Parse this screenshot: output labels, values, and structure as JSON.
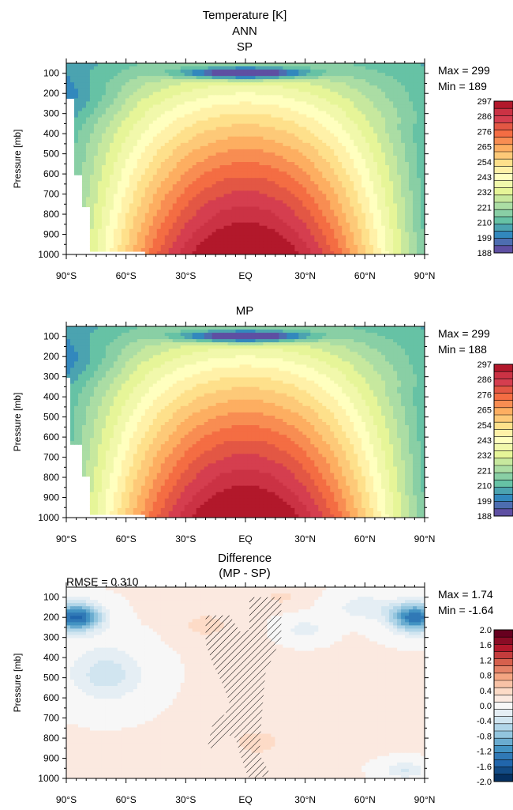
{
  "header": {
    "title_line1": "Temperature [K]",
    "title_line2": "ANN"
  },
  "chart_data": [
    {
      "type": "heatmap",
      "title": "SP",
      "ylabel": "Pressure [mb]",
      "x_tick_labels": [
        "90°S",
        "60°S",
        "30°S",
        "EQ",
        "30°N",
        "60°N",
        "90°N"
      ],
      "y_tick_labels": [
        "100",
        "200",
        "300",
        "400",
        "500",
        "600",
        "700",
        "800",
        "900",
        "1000"
      ],
      "xlim": [
        -90,
        90
      ],
      "ylim": [
        1000,
        50
      ],
      "max_label": "Max = 299",
      "min_label": "Min = 189",
      "max_value": 299,
      "min_value": 189,
      "colorbar_labels": [
        "297",
        "286",
        "276",
        "265",
        "254",
        "243",
        "232",
        "221",
        "210",
        "199",
        "188"
      ],
      "colorbar_colors": [
        "#b2182b",
        "#cb3244",
        "#d53e4f",
        "#e35744",
        "#f46d43",
        "#f88d52",
        "#fdae61",
        "#fdc978",
        "#fee08b",
        "#fff1a8",
        "#ffffbf",
        "#f1f8ab",
        "#e6f598",
        "#c7e89e",
        "#abdda4",
        "#89cfa5",
        "#66c2a5",
        "#4ba3b0",
        "#3288bd",
        "#4d6db0",
        "#5e4fa2"
      ],
      "colormap_range": [
        188,
        299
      ]
    },
    {
      "type": "heatmap",
      "title": "MP",
      "ylabel": "Pressure [mb]",
      "x_tick_labels": [
        "90°S",
        "60°S",
        "30°S",
        "EQ",
        "30°N",
        "60°N",
        "90°N"
      ],
      "y_tick_labels": [
        "100",
        "200",
        "300",
        "400",
        "500",
        "600",
        "700",
        "800",
        "900",
        "1000"
      ],
      "xlim": [
        -90,
        90
      ],
      "ylim": [
        1000,
        50
      ],
      "max_label": "Max = 299",
      "min_label": "Min = 188",
      "max_value": 299,
      "min_value": 188,
      "colorbar_labels": [
        "297",
        "286",
        "276",
        "265",
        "254",
        "243",
        "232",
        "221",
        "210",
        "199",
        "188"
      ],
      "colorbar_colors": [
        "#b2182b",
        "#cb3244",
        "#d53e4f",
        "#e35744",
        "#f46d43",
        "#f88d52",
        "#fdae61",
        "#fdc978",
        "#fee08b",
        "#fff1a8",
        "#ffffbf",
        "#f1f8ab",
        "#e6f598",
        "#c7e89e",
        "#abdda4",
        "#89cfa5",
        "#66c2a5",
        "#4ba3b0",
        "#3288bd",
        "#4d6db0",
        "#5e4fa2"
      ],
      "colormap_range": [
        188,
        299
      ]
    },
    {
      "type": "heatmap",
      "title": "Difference",
      "subtitle": "(MP - SP)",
      "rmse_label": "RMSE = 0.310",
      "ylabel": "Pressure [mb]",
      "x_tick_labels": [
        "90°S",
        "60°S",
        "30°S",
        "EQ",
        "30°N",
        "60°N",
        "90°N"
      ],
      "y_tick_labels": [
        "100",
        "200",
        "300",
        "400",
        "500",
        "600",
        "700",
        "800",
        "900",
        "1000"
      ],
      "xlim": [
        -90,
        90
      ],
      "ylim": [
        1000,
        50
      ],
      "max_label": "Max = 1.74",
      "min_label": "Min = -1.64",
      "max_value": 1.74,
      "min_value": -1.64,
      "colorbar_labels": [
        "2.0",
        "1.6",
        "1.2",
        "0.8",
        "0.4",
        "0.0",
        "-0.4",
        "-0.8",
        "-1.2",
        "-1.6",
        "-2.0"
      ],
      "colorbar_colors": [
        "#67001f",
        "#8a0c25",
        "#b2182b",
        "#c43c3c",
        "#d6604d",
        "#e58368",
        "#f4a582",
        "#f8c2a6",
        "#fddbc7",
        "#fbe9e0",
        "#f7f7f7",
        "#e5eef4",
        "#d1e5f0",
        "#b1d5e8",
        "#92c5de",
        "#6aacd0",
        "#4393c3",
        "#3079b6",
        "#2166ac",
        "#124b85",
        "#053061"
      ],
      "colormap_range": [
        -2.0,
        2.0
      ]
    }
  ]
}
